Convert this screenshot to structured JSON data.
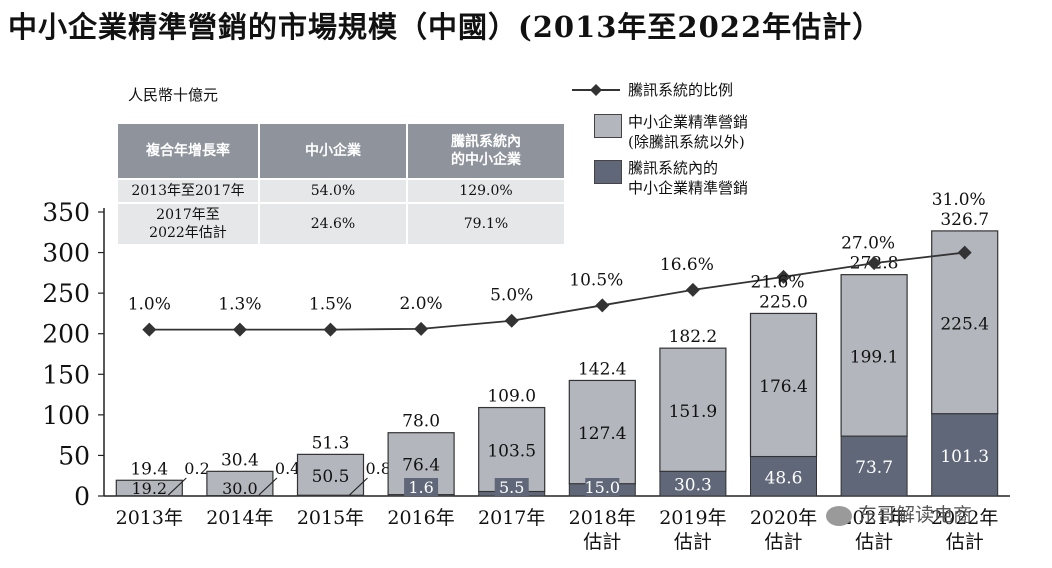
{
  "title": "中小企業精準營銷的市場規模（中國）(2013年至2022年估計）",
  "unit_label": "人民幣十億元",
  "cagr_table": {
    "headers": [
      "複合年增長率",
      "中小企業",
      "騰訊系統內\n的中小企業"
    ],
    "rows": [
      [
        "2013年至2017年",
        "54.0%",
        "129.0%"
      ],
      [
        "2017年至\n2022年估計",
        "24.6%",
        "79.1%"
      ]
    ]
  },
  "legend": {
    "line": "騰訊系統的比例",
    "outside": "中小企業精準營銷\n(除騰訊系統以外)",
    "inside": "騰訊系統內的\n中小企業精準營銷"
  },
  "colors": {
    "outside": "#b3b6bc",
    "inside": "#5f6779",
    "line": "#333333",
    "table_header": "#8f949c"
  },
  "watermark": "东哥解读电商",
  "chart_data": {
    "type": "bar",
    "stacked": true,
    "categories": [
      "2013年",
      "2014年",
      "2015年",
      "2016年",
      "2017年",
      "2018年\n估計",
      "2019年\n估計",
      "2020年\n估計",
      "2021年\n估計",
      "2022年\n估計"
    ],
    "series": [
      {
        "name": "騰訊系統內的中小企業精準營銷",
        "values": [
          0.2,
          0.4,
          0.8,
          1.6,
          5.5,
          15.0,
          30.3,
          48.6,
          73.7,
          101.3
        ]
      },
      {
        "name": "中小企業精準營銷(除騰訊系統以外)",
        "values": [
          19.2,
          30.0,
          50.5,
          76.4,
          103.5,
          127.4,
          151.9,
          176.4,
          199.1,
          225.4
        ]
      }
    ],
    "totals": [
      19.4,
      30.4,
      51.3,
      78.0,
      109.0,
      142.4,
      182.2,
      225.0,
      272.8,
      326.7
    ],
    "line_series": {
      "name": "騰訊系統的比例",
      "labels": [
        "1.0%",
        "1.3%",
        "1.5%",
        "2.0%",
        "5.0%",
        "10.5%",
        "16.6%",
        "21.6%",
        "27.0%",
        "31.0%"
      ],
      "plot_values": [
        205,
        205,
        205,
        206,
        216,
        235,
        254,
        270,
        287,
        300
      ]
    },
    "ylim": [
      0,
      350
    ],
    "yticks": [
      0,
      50,
      100,
      150,
      200,
      250,
      300,
      350
    ]
  }
}
